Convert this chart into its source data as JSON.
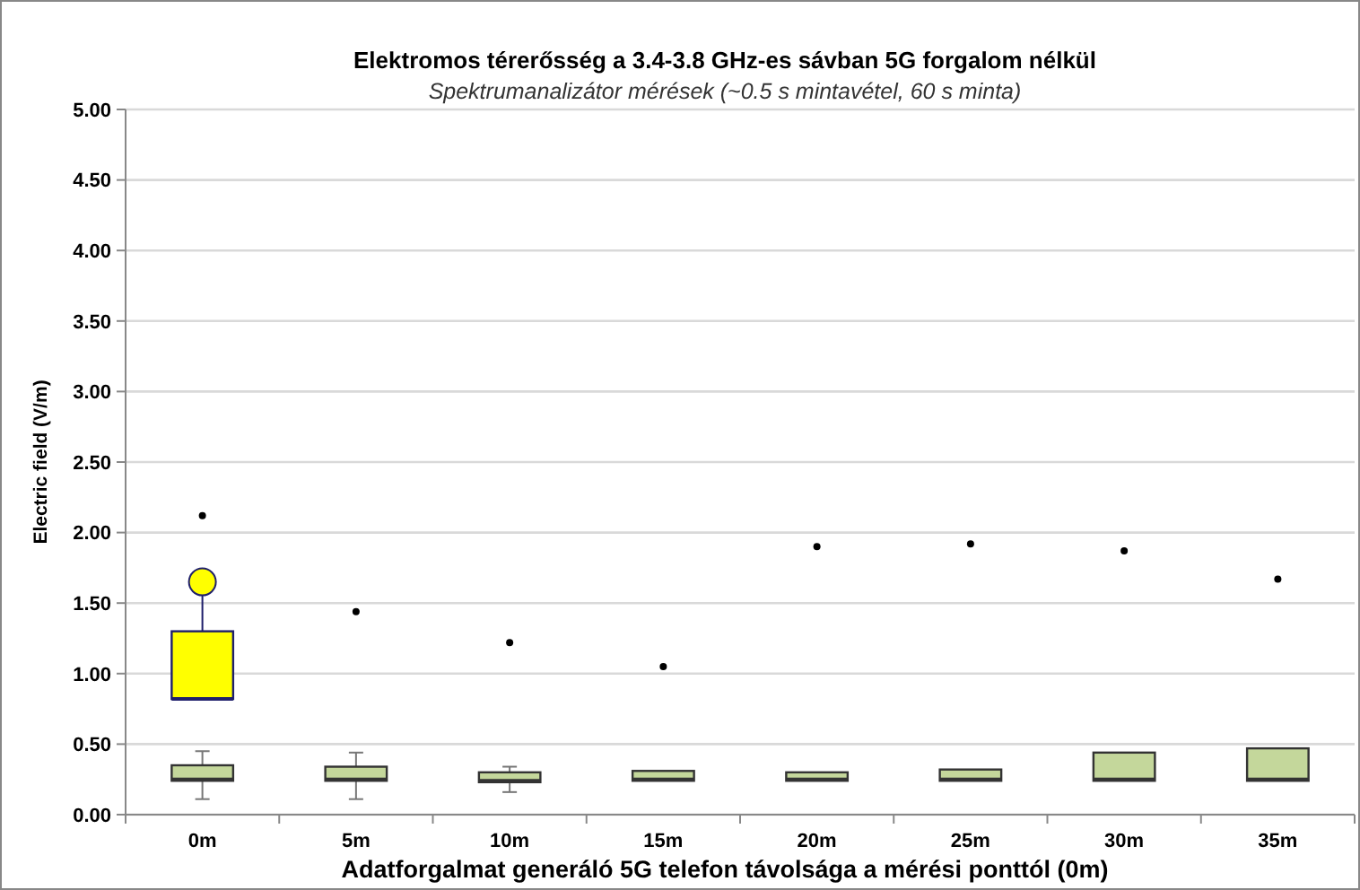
{
  "chart_data": {
    "type": "box",
    "title": "Elektromos térerősség a 3.4-3.8 GHz-es sávban 5G forgalom nélkül",
    "subtitle": "Spektrumanalizátor mérések (~0.5 s mintavétel, 60 s minta)",
    "xlabel": "Adatforgalmat generáló 5G telefon távolsága a mérési ponttól (0m)",
    "ylabel": "Electric field (V/m)",
    "categories": [
      "0m",
      "5m",
      "10m",
      "15m",
      "20m",
      "25m",
      "30m",
      "35m"
    ],
    "ylim": [
      0,
      5
    ],
    "yticks": [
      {
        "value": 0,
        "label": "0.00"
      },
      {
        "value": 0.5,
        "label": "0.50"
      },
      {
        "value": 1,
        "label": "1.00"
      },
      {
        "value": 1.5,
        "label": "1.50"
      },
      {
        "value": 2,
        "label": "2.00"
      },
      {
        "value": 2.5,
        "label": "2.50"
      },
      {
        "value": 3,
        "label": "3.00"
      },
      {
        "value": 3.5,
        "label": "3.50"
      },
      {
        "value": 4,
        "label": "4.00"
      },
      {
        "value": 4.5,
        "label": "4.50"
      },
      {
        "value": 5,
        "label": "5.00"
      }
    ],
    "grid": "y",
    "series": [
      {
        "color": "#c4d79b",
        "boxes": [
          {
            "low": 0.11,
            "q1": 0.24,
            "median": 0.25,
            "q3": 0.35,
            "high": 0.45,
            "outliers": [
              2.12
            ]
          },
          {
            "low": 0.11,
            "q1": 0.24,
            "median": 0.25,
            "q3": 0.34,
            "high": 0.44,
            "outliers": [
              1.44
            ]
          },
          {
            "low": 0.16,
            "q1": 0.23,
            "median": 0.24,
            "q3": 0.3,
            "high": 0.34,
            "outliers": [
              1.22
            ]
          },
          {
            "low": 0.24,
            "q1": 0.24,
            "median": 0.25,
            "q3": 0.31,
            "high": 0.31,
            "outliers": [
              1.05
            ]
          },
          {
            "low": 0.24,
            "q1": 0.24,
            "median": 0.25,
            "q3": 0.3,
            "high": 0.3,
            "outliers": [
              1.9
            ]
          },
          {
            "low": 0.24,
            "q1": 0.24,
            "median": 0.25,
            "q3": 0.32,
            "high": 0.32,
            "outliers": [
              1.92
            ]
          },
          {
            "low": 0.24,
            "q1": 0.24,
            "median": 0.25,
            "q3": 0.44,
            "high": 0.44,
            "outliers": [
              1.87
            ]
          },
          {
            "low": 0.24,
            "q1": 0.24,
            "median": 0.25,
            "q3": 0.47,
            "high": 0.47,
            "outliers": [
              1.67
            ]
          }
        ]
      },
      {
        "color": "#ffff00",
        "boxes": [
          {
            "low": 0.82,
            "q1": 0.82,
            "median": 0.82,
            "q3": 1.3,
            "high": 1.65
          },
          null,
          null,
          null,
          null,
          null,
          null,
          null
        ]
      },
      {
        "type": "scatter",
        "color": "#ffff00",
        "marker": "circle",
        "x": [
          "0m"
        ],
        "values": [
          1.65
        ]
      }
    ]
  }
}
